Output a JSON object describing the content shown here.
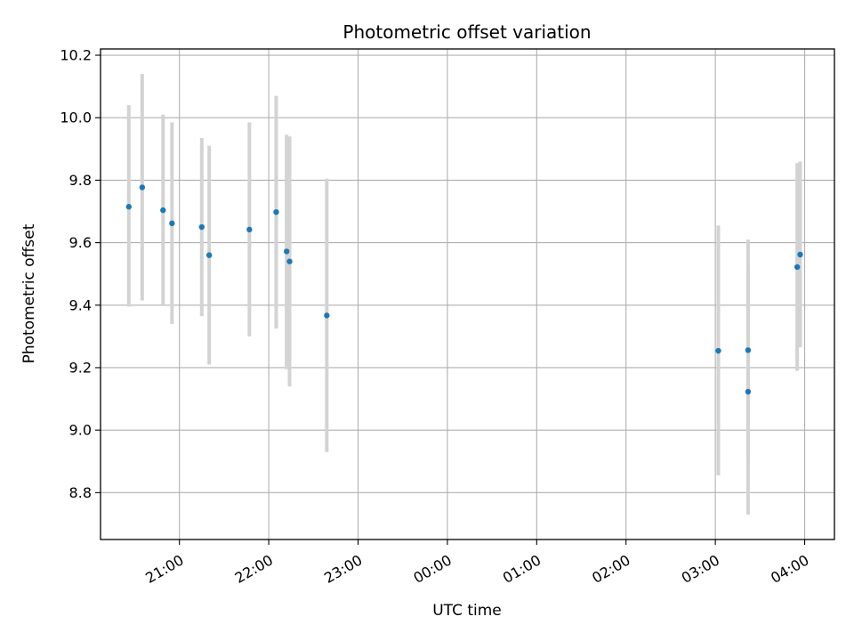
{
  "chart_data": {
    "type": "scatter",
    "title": "Photometric offset variation",
    "xlabel": "UTC time",
    "ylabel": "Photometric offset",
    "grid": true,
    "x_unit": "UTC time (HH:MM)",
    "xlim": [
      "20:07",
      "04:20"
    ],
    "ylim": [
      8.65,
      10.22
    ],
    "x_ticks": [
      "21:00",
      "22:00",
      "23:00",
      "00:00",
      "01:00",
      "02:00",
      "03:00",
      "04:00"
    ],
    "y_ticks": [
      "8.8",
      "9.0",
      "9.2",
      "9.4",
      "9.6",
      "9.8",
      "10.0",
      "10.2"
    ],
    "y_tick_values": [
      8.8,
      9.0,
      9.2,
      9.4,
      9.6,
      9.8,
      10.0,
      10.2
    ],
    "colors": {
      "points": "#1f77b4",
      "errorbars": "#d3d3d3",
      "grid": "#b0b0b0"
    },
    "points": [
      {
        "x": "20:26",
        "y": 9.715,
        "err_low": 9.395,
        "err_high": 10.04
      },
      {
        "x": "20:35",
        "y": 9.777,
        "err_low": 9.415,
        "err_high": 10.14
      },
      {
        "x": "20:49",
        "y": 9.704,
        "err_low": 9.4,
        "err_high": 10.01
      },
      {
        "x": "20:55",
        "y": 9.662,
        "err_low": 9.34,
        "err_high": 9.985
      },
      {
        "x": "21:15",
        "y": 9.65,
        "err_low": 9.365,
        "err_high": 9.935
      },
      {
        "x": "21:20",
        "y": 9.56,
        "err_low": 9.21,
        "err_high": 9.91
      },
      {
        "x": "21:47",
        "y": 9.642,
        "err_low": 9.3,
        "err_high": 9.985
      },
      {
        "x": "22:05",
        "y": 9.698,
        "err_low": 9.325,
        "err_high": 10.07
      },
      {
        "x": "22:12",
        "y": 9.572,
        "err_low": 9.195,
        "err_high": 9.945
      },
      {
        "x": "22:14",
        "y": 9.54,
        "err_low": 9.14,
        "err_high": 9.94
      },
      {
        "x": "22:39",
        "y": 9.367,
        "err_low": 8.93,
        "err_high": 9.805
      },
      {
        "x": "03:02",
        "y": 9.254,
        "err_low": 8.855,
        "err_high": 9.655
      },
      {
        "x": "03:22",
        "y": 9.256,
        "err_low": 8.905,
        "err_high": 9.61
      },
      {
        "x": "03:22",
        "y": 9.123,
        "err_low": 8.73,
        "err_high": 9.52
      },
      {
        "x": "03:55",
        "y": 9.522,
        "err_low": 9.19,
        "err_high": 9.855
      },
      {
        "x": "03:57",
        "y": 9.562,
        "err_low": 9.265,
        "err_high": 9.86
      }
    ]
  }
}
